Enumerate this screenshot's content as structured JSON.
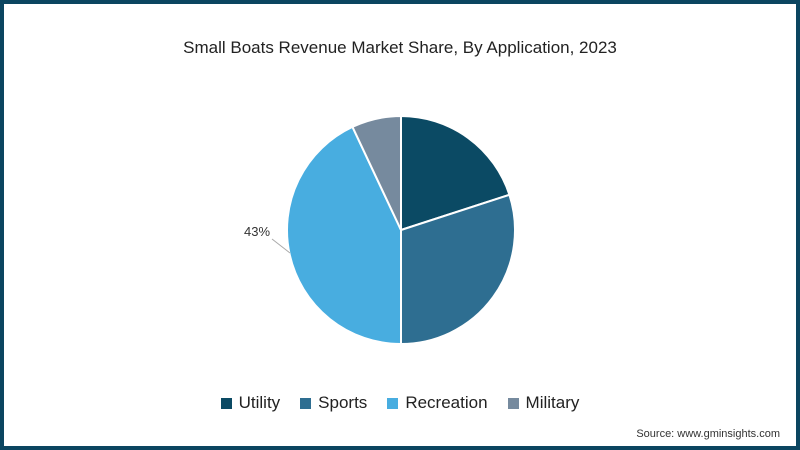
{
  "chart_data": {
    "type": "pie",
    "title": "Small Boats Revenue Market Share, By Application, 2023",
    "categories": [
      "Utility",
      "Sports",
      "Recreation",
      "Military"
    ],
    "values": [
      20,
      30,
      43,
      7
    ],
    "colors": [
      "#0b4a64",
      "#2e6e91",
      "#48ade0",
      "#768a9e"
    ],
    "data_labels": [
      {
        "category": "Recreation",
        "text": "43%"
      }
    ],
    "legend_position": "bottom",
    "start_angle_deg": 0,
    "direction": "clockwise"
  },
  "title": "Small Boats Revenue Market Share, By Application, 2023",
  "label_43": "43%",
  "legend": [
    "Utility",
    "Sports",
    "Recreation",
    "Military"
  ],
  "source": "Source: www.gminsights.com",
  "colors": {
    "border": "#0b4560"
  }
}
